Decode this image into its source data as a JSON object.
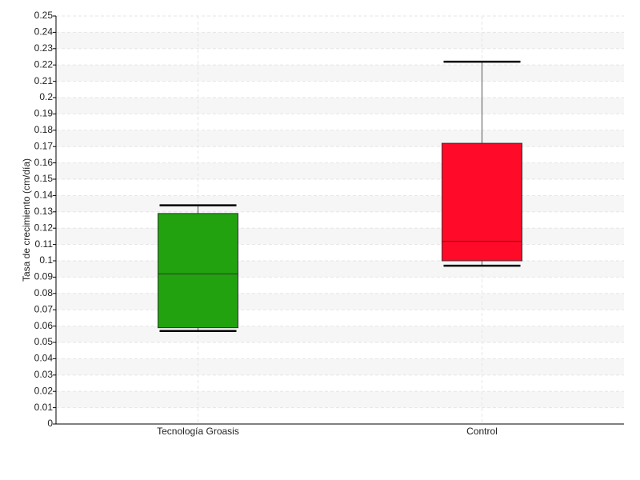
{
  "chart_data": {
    "type": "box",
    "y_label": "Tasa de crecimiento (cm/día)",
    "categories": [
      "Tecnología Groasis",
      "Control"
    ],
    "boxes": [
      {
        "color": "#22a20f",
        "min": 0.057,
        "q1": 0.059,
        "median": 0.092,
        "q3": 0.129,
        "max": 0.134
      },
      {
        "color": "#ff0a28",
        "min": 0.097,
        "q1": 0.1,
        "median": 0.112,
        "q3": 0.172,
        "max": 0.222
      }
    ],
    "ylim": [
      0,
      0.25
    ],
    "yticks": [
      0,
      0.01,
      0.02,
      0.03,
      0.04,
      0.05,
      0.06,
      0.07,
      0.08,
      0.09,
      0.1,
      0.11,
      0.12,
      0.13,
      0.14,
      0.15,
      0.16,
      0.17,
      0.18,
      0.19,
      0.2,
      0.21,
      0.22,
      0.23,
      0.24,
      0.25
    ],
    "grid": true
  }
}
